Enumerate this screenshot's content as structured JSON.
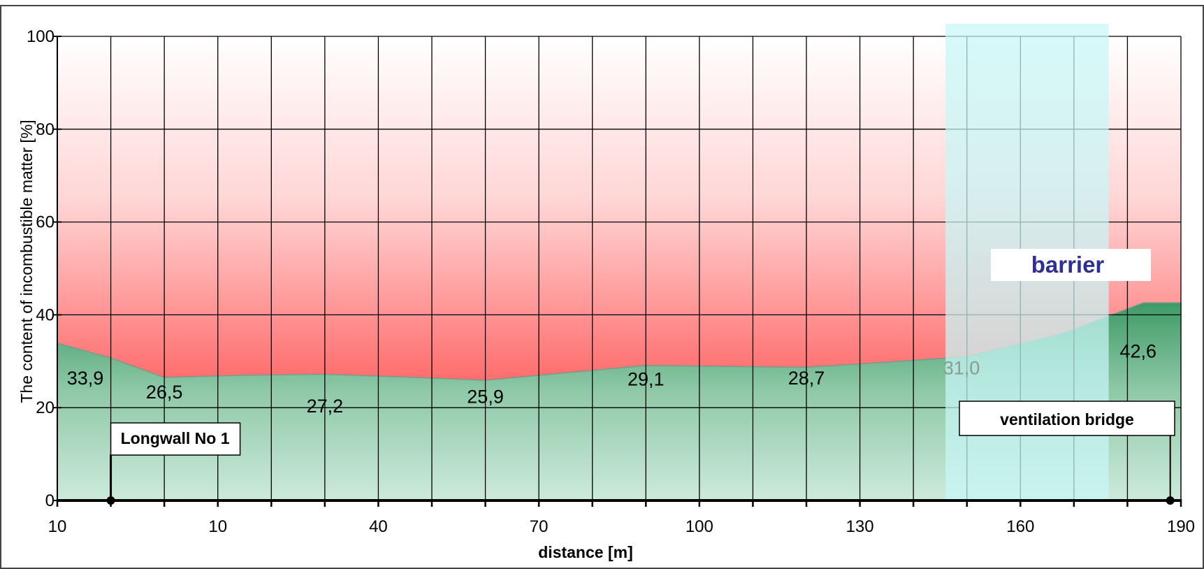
{
  "chart_data": {
    "type": "area",
    "xlabel": "distance [m]",
    "ylabel": "The content of incombustible matter [%]",
    "ylim": [
      0,
      100
    ],
    "y_ticks": [
      "0",
      "20",
      "40",
      "60",
      "80",
      "100"
    ],
    "x_tick_labels": [
      "10",
      "10",
      "40",
      "70",
      "100",
      "130",
      "160",
      "190"
    ],
    "x_ticks_per_label": 3,
    "grid": true,
    "points": [
      {
        "label": "33,9",
        "value": 33.9
      },
      {
        "label": "26,5",
        "value": 26.5
      },
      {
        "label": "27,2",
        "value": 27.2
      },
      {
        "label": "25,9",
        "value": 25.9
      },
      {
        "label": "29,1",
        "value": 29.1
      },
      {
        "label": "28,7",
        "value": 28.7
      },
      {
        "label": "31,0",
        "value": 31.0
      },
      {
        "label": "42,6",
        "value": 42.6
      }
    ],
    "annotations": {
      "longwall": "Longwall No 1",
      "barrier": "barrier",
      "ventilation_bridge": "ventilation bridge"
    },
    "colors": {
      "area_top": "#4a9a68",
      "area_bottom": "#c8e8d8",
      "bg_top": "#ffffff",
      "bg_bottom": "#ff5a5a",
      "barrier_zone": "#c8f6f6",
      "barrier_text": "#2e3192"
    }
  }
}
